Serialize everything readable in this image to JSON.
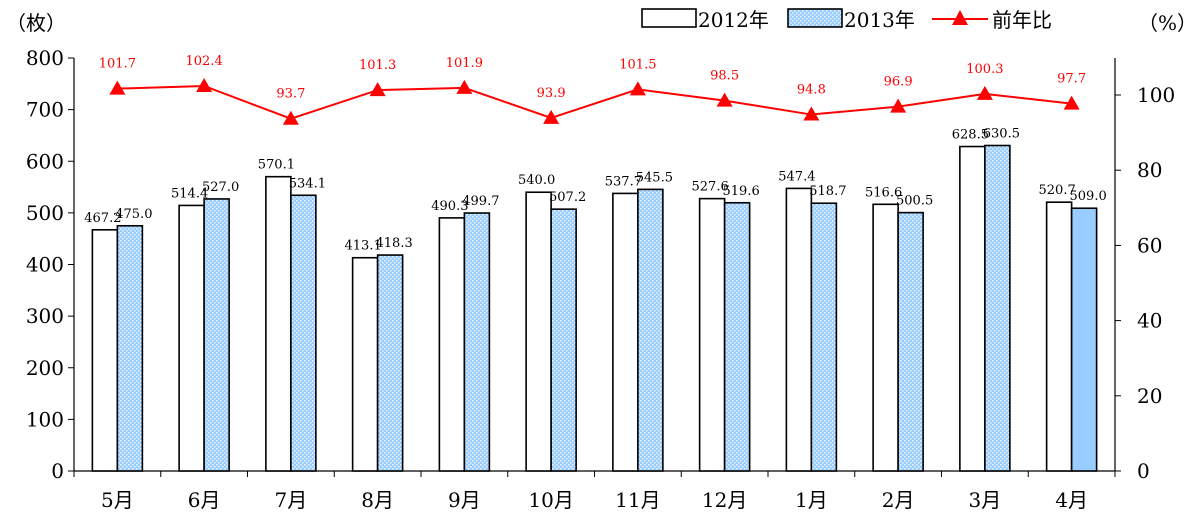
{
  "chart_data": {
    "type": "bar",
    "categories": [
      "5月",
      "6月",
      "7月",
      "8月",
      "9月",
      "10月",
      "11月",
      "12月",
      "1月",
      "2月",
      "3月",
      "4月"
    ],
    "series": [
      {
        "name": "2012年",
        "type": "bar",
        "axis": "left",
        "color": "#ffffff",
        "values": [
          467.2,
          514.4,
          570.1,
          413.1,
          490.3,
          540.0,
          537.7,
          527.6,
          547.4,
          516.6,
          628.5,
          520.7
        ]
      },
      {
        "name": "2013年",
        "type": "bar",
        "axis": "left",
        "color": "#99ccff",
        "values": [
          475.0,
          527.0,
          534.1,
          418.3,
          499.7,
          507.2,
          545.5,
          519.6,
          518.7,
          500.5,
          630.5,
          509.0
        ]
      },
      {
        "name": "前年比",
        "type": "line",
        "axis": "right",
        "color": "#ff0000",
        "values": [
          101.7,
          102.4,
          93.7,
          101.3,
          101.9,
          93.9,
          101.5,
          98.5,
          94.8,
          96.9,
          100.3,
          97.7
        ]
      }
    ],
    "left_axis": {
      "unit_label": "（枚）",
      "ylim": [
        0,
        800
      ],
      "ticks": [
        0,
        100,
        200,
        300,
        400,
        500,
        600,
        700,
        800
      ]
    },
    "right_axis": {
      "unit_label": "（%）",
      "ylim": [
        0,
        110
      ],
      "ticks": [
        0,
        20,
        40,
        60,
        80,
        100
      ]
    },
    "legend_position": "top-right",
    "bar_labels": {
      "2012年": [
        "467.2",
        "514.4",
        "570.1",
        "413.1",
        "490.3",
        "540.0",
        "537.7",
        "527.6",
        "547.4",
        "516.6",
        "628.5",
        "520.7"
      ],
      "2013年": [
        "475.0",
        "527.0",
        "534.1",
        "418.3",
        "499.7",
        "507.2",
        "545.5",
        "519.6",
        "518.7",
        "500.5",
        "630.5",
        "509.0"
      ],
      "前年比": [
        "101.7",
        "102.4",
        "93.7",
        "101.3",
        "101.9",
        "93.9",
        "101.5",
        "98.5",
        "94.8",
        "96.9",
        "100.3",
        "97.7"
      ]
    }
  }
}
